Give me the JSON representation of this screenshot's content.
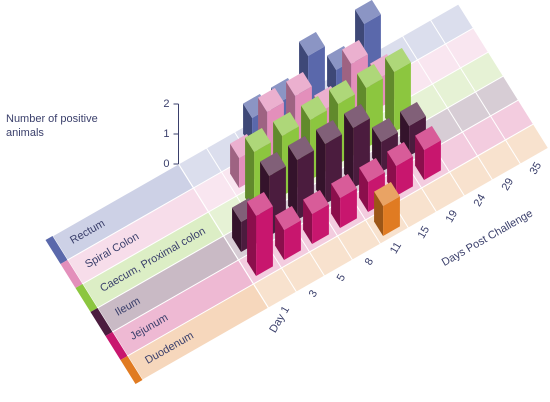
{
  "chart_data": {
    "type": "bar3d",
    "y_label": "Number of positive animals",
    "x_label": "Days Post Challenge",
    "categories": [
      "Day 1",
      "3",
      "5",
      "8",
      "11",
      "15",
      "19",
      "24",
      "29",
      "35"
    ],
    "series": [
      {
        "name": "Rectum",
        "color": "#5a68ab",
        "values": [
          0,
          0,
          1,
          1,
          2,
          1,
          2,
          0,
          0,
          0
        ]
      },
      {
        "name": "Spiral Colon",
        "color": "#e38fbb",
        "values": [
          0,
          1,
          2,
          2,
          1,
          2,
          1,
          0,
          0,
          0
        ]
      },
      {
        "name": "Caecum, Proximal colon",
        "color": "#8cc63f",
        "values": [
          0,
          2,
          2,
          2,
          2,
          2,
          2,
          0,
          0,
          0
        ]
      },
      {
        "name": "Ileum",
        "color": "#4b1c3e",
        "values": [
          1,
          2,
          2,
          2,
          2,
          1,
          1,
          0,
          0,
          0
        ]
      },
      {
        "name": "Jejunum",
        "color": "#c8166e",
        "values": [
          2,
          1,
          1,
          1,
          1,
          1,
          1,
          0,
          0,
          0
        ]
      },
      {
        "name": "Duodenum",
        "color": "#e07b22",
        "values": [
          0,
          0,
          0,
          0,
          1,
          0,
          0,
          0,
          0,
          0
        ]
      }
    ],
    "ylim": [
      0,
      2
    ],
    "yticks": [
      0,
      1,
      2
    ]
  }
}
